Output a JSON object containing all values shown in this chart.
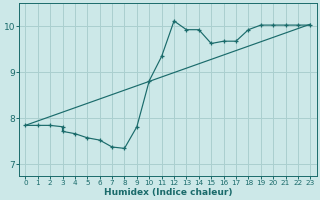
{
  "xlabel": "Humidex (Indice chaleur)",
  "bg_color": "#cce8e8",
  "grid_color": "#aacfcf",
  "line_color": "#1a6b6b",
  "xlim": [
    -0.5,
    23.5
  ],
  "ylim": [
    6.75,
    10.5
  ],
  "xticks": [
    0,
    1,
    2,
    3,
    4,
    5,
    6,
    7,
    8,
    9,
    10,
    11,
    12,
    13,
    14,
    15,
    16,
    17,
    18,
    19,
    20,
    21,
    22,
    23
  ],
  "yticks": [
    7,
    8,
    9,
    10
  ],
  "curve1_x": [
    0,
    1,
    2,
    3,
    3,
    4,
    5,
    6,
    7,
    8,
    9,
    10,
    11,
    12,
    13,
    14,
    15,
    16,
    17,
    18,
    19,
    20,
    21,
    22,
    23
  ],
  "curve1_y": [
    7.85,
    7.85,
    7.85,
    7.82,
    7.72,
    7.67,
    7.58,
    7.53,
    7.38,
    7.35,
    7.82,
    8.82,
    9.35,
    10.12,
    9.93,
    9.93,
    9.63,
    9.68,
    9.68,
    9.93,
    10.03,
    10.03,
    10.03,
    10.03,
    10.03
  ],
  "curve2_x": [
    0,
    23
  ],
  "curve2_y": [
    7.85,
    10.05
  ]
}
